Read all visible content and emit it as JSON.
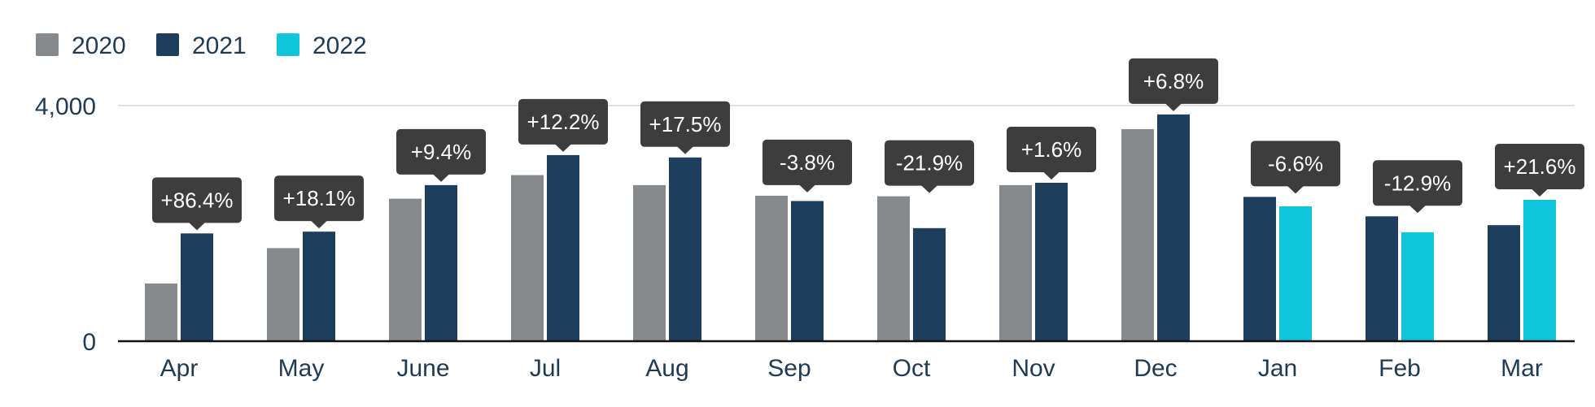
{
  "chart_data": {
    "type": "bar",
    "categories": [
      "Apr",
      "May",
      "June",
      "Jul",
      "Aug",
      "Sep",
      "Oct",
      "Nov",
      "Dec",
      "Jan",
      "Feb",
      "Mar"
    ],
    "series": [
      {
        "name": "2020",
        "color": "#878a8c",
        "values": [
          980,
          1580,
          2420,
          2820,
          2650,
          2470,
          2460,
          2650,
          3600,
          null,
          null,
          null
        ]
      },
      {
        "name": "2021",
        "color": "#1d3e5c",
        "values": [
          1830,
          1860,
          2650,
          3160,
          3120,
          2380,
          1920,
          2690,
          3850,
          2450,
          2120,
          1970
        ]
      },
      {
        "name": "2022",
        "color": "#10c5dc",
        "values": [
          null,
          null,
          null,
          null,
          null,
          null,
          null,
          null,
          null,
          2290,
          1850,
          2400
        ]
      }
    ],
    "annotations": [
      "+86.4%",
      "+18.1%",
      "+9.4%",
      "+12.2%",
      "+17.5%",
      "-3.8%",
      "-21.9%",
      "+1.6%",
      "+6.8%",
      "-6.6%",
      "-12.9%",
      "+21.6%"
    ],
    "yticks": [
      {
        "value": 0,
        "label": "0"
      },
      {
        "value": 4000,
        "label": "4,000"
      }
    ],
    "ylim": [
      0,
      4000
    ],
    "grid": true,
    "legend": "top-left",
    "callout_color": "#3d3d3d"
  }
}
